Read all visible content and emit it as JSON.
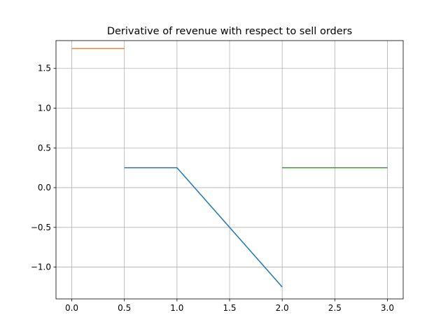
{
  "chart_data": {
    "type": "line",
    "title": "Derivative of revenue with respect to sell orders",
    "xlabel": "",
    "ylabel": "",
    "xlim": [
      -0.15,
      3.15
    ],
    "ylim": [
      -1.4,
      1.85
    ],
    "grid": true,
    "x_ticks": [
      0.0,
      0.5,
      1.0,
      1.5,
      2.0,
      2.5,
      3.0
    ],
    "x_tick_labels": [
      "0.0",
      "0.5",
      "1.0",
      "1.5",
      "2.0",
      "2.5",
      "3.0"
    ],
    "y_ticks": [
      -1.0,
      -0.5,
      0.0,
      0.5,
      1.0,
      1.5
    ],
    "y_tick_labels": [
      "−1.0",
      "−0.5",
      "0.0",
      "0.5",
      "1.0",
      "1.5"
    ],
    "series": [
      {
        "color": "#1f77b4",
        "x": [
          0.5,
          1.0,
          2.0
        ],
        "y": [
          0.25,
          0.25,
          -1.25
        ]
      },
      {
        "color": "#ff7f0e",
        "x": [
          0.0,
          0.5
        ],
        "y": [
          1.75,
          1.75
        ]
      },
      {
        "color": "#2ca02c",
        "x": [
          2.0,
          3.0
        ],
        "y": [
          0.25,
          0.25
        ]
      }
    ]
  }
}
